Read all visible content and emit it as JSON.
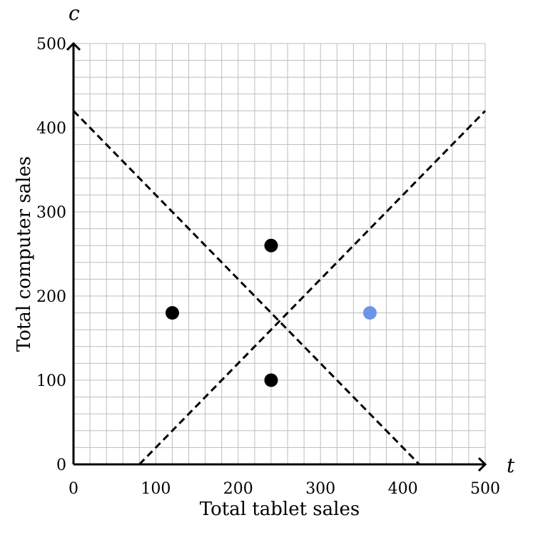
{
  "chart_data": {
    "type": "scatter",
    "xlabel": "Total tablet sales",
    "ylabel": "Total computer sales",
    "x_variable": "t",
    "y_variable": "c",
    "xlim": [
      0,
      500
    ],
    "ylim": [
      0,
      500
    ],
    "grid": true,
    "minor_grid_step": 20,
    "x_ticks": [
      0,
      100,
      200,
      300,
      400,
      500
    ],
    "y_ticks": [
      0,
      100,
      200,
      300,
      400,
      500
    ],
    "x_tick_labels": [
      "0",
      "100",
      "200",
      "300",
      "400",
      "500"
    ],
    "y_tick_labels": [
      "0",
      "100",
      "200",
      "300",
      "400",
      "500"
    ],
    "lines": [
      {
        "style": "dashed",
        "color": "#000000",
        "points": [
          [
            0,
            420
          ],
          [
            420,
            0
          ]
        ]
      },
      {
        "style": "dashed",
        "color": "#000000",
        "points": [
          [
            80,
            0
          ],
          [
            500,
            420
          ]
        ]
      }
    ],
    "series": [
      {
        "color": "#000000",
        "points": [
          [
            120,
            180
          ],
          [
            240,
            260
          ],
          [
            240,
            100
          ]
        ]
      },
      {
        "color": "#6f94e6",
        "points": [
          [
            360,
            180
          ]
        ]
      }
    ]
  }
}
